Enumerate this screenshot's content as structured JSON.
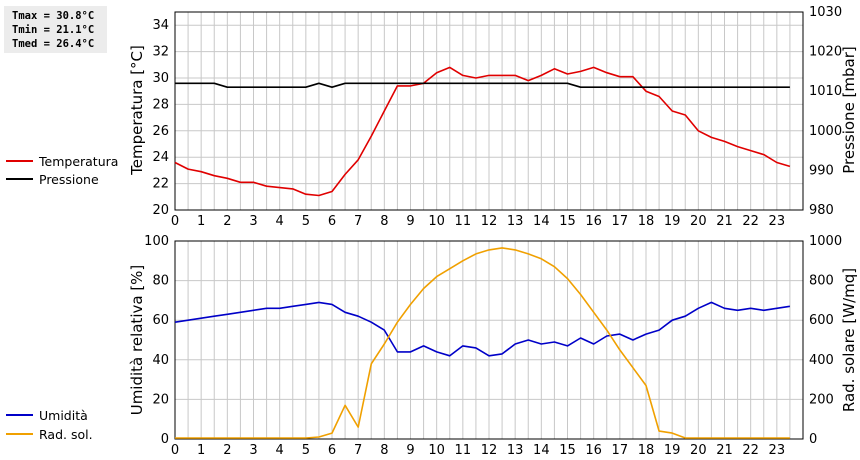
{
  "stats": {
    "tmax": "Tmax = 30.8°C",
    "tmin": "Tmin = 21.1°C",
    "tmed": "Tmed = 26.4°C"
  },
  "colors": {
    "temperature": "#e00000",
    "pressure": "#000000",
    "humidity": "#0000c8",
    "radiation": "#f0a000",
    "grid": "#c8c8c8"
  },
  "chart_data": [
    {
      "type": "line",
      "title": "",
      "xlabel": "",
      "ylabel": "Temperatura [°C]",
      "ylabel_right": "Pressione [mbar]",
      "xlim": [
        0,
        24
      ],
      "xticks": [
        "0",
        "1",
        "2",
        "3",
        "4",
        "5",
        "6",
        "7",
        "8",
        "9",
        "10",
        "11",
        "12",
        "13",
        "14",
        "15",
        "16",
        "17",
        "18",
        "19",
        "20",
        "21",
        "22",
        "23"
      ],
      "ylim": [
        20,
        35
      ],
      "yticks": [
        "20",
        "22",
        "24",
        "26",
        "28",
        "30",
        "32",
        "34"
      ],
      "ylim_right": [
        980,
        1030
      ],
      "yticks_right": [
        "980",
        "990",
        "1000",
        "1010",
        "1020",
        "1030"
      ],
      "grid": true,
      "legend": "left",
      "series": [
        {
          "name": "Temperatura",
          "axis": "left",
          "x": [
            0,
            0.5,
            1,
            1.5,
            2,
            2.5,
            3,
            3.5,
            4,
            4.5,
            5,
            5.5,
            6,
            6.5,
            7,
            7.5,
            8,
            8.5,
            9,
            9.5,
            10,
            10.5,
            11,
            11.5,
            12,
            12.5,
            13,
            13.5,
            14,
            14.5,
            15,
            15.5,
            16,
            16.5,
            17,
            17.5,
            18,
            18.5,
            19,
            19.5,
            20,
            20.5,
            21,
            21.5,
            22,
            22.5,
            23,
            23.5
          ],
          "values": [
            23.6,
            23.1,
            22.9,
            22.6,
            22.4,
            22.1,
            22.1,
            21.8,
            21.7,
            21.6,
            21.2,
            21.1,
            21.4,
            22.7,
            23.8,
            25.6,
            27.5,
            29.4,
            29.4,
            29.6,
            30.4,
            30.8,
            30.2,
            30.0,
            30.2,
            30.2,
            30.2,
            29.8,
            30.2,
            30.7,
            30.3,
            30.5,
            30.8,
            30.4,
            30.1,
            30.1,
            29.0,
            28.6,
            27.5,
            27.2,
            26.0,
            25.5,
            25.2,
            24.8,
            24.5,
            24.2,
            23.6,
            23.3
          ]
        },
        {
          "name": "Pressione",
          "axis": "right",
          "x": [
            0,
            0.5,
            1,
            1.5,
            2,
            2.5,
            3,
            3.5,
            4,
            4.5,
            5,
            5.5,
            6,
            6.5,
            7,
            7.5,
            8,
            8.5,
            9,
            9.5,
            10,
            10.5,
            11,
            11.5,
            12,
            12.5,
            13,
            13.5,
            14,
            14.5,
            15,
            15.5,
            16,
            16.5,
            17,
            17.5,
            18,
            18.5,
            19,
            19.5,
            20,
            20.5,
            21,
            21.5,
            22,
            22.5,
            23,
            23.5
          ],
          "values": [
            1012,
            1012,
            1012,
            1012,
            1011,
            1011,
            1011,
            1011,
            1011,
            1011,
            1011,
            1012,
            1011,
            1012,
            1012,
            1012,
            1012,
            1012,
            1012,
            1012,
            1012,
            1012,
            1012,
            1012,
            1012,
            1012,
            1012,
            1012,
            1012,
            1012,
            1012,
            1011,
            1011,
            1011,
            1011,
            1011,
            1011,
            1011,
            1011,
            1011,
            1011,
            1011,
            1011,
            1011,
            1011,
            1011,
            1011,
            1011
          ]
        }
      ]
    },
    {
      "type": "line",
      "title": "",
      "xlabel": "",
      "ylabel": "Umidità relativa [%]",
      "ylabel_right": "Rad. solare [W/mq]",
      "xlim": [
        0,
        24
      ],
      "xticks": [
        "0",
        "1",
        "2",
        "3",
        "4",
        "5",
        "6",
        "7",
        "8",
        "9",
        "10",
        "11",
        "12",
        "13",
        "14",
        "15",
        "16",
        "17",
        "18",
        "19",
        "20",
        "21",
        "22",
        "23"
      ],
      "ylim": [
        0,
        100
      ],
      "yticks": [
        "0",
        "20",
        "40",
        "60",
        "80",
        "100"
      ],
      "ylim_right": [
        0,
        1000
      ],
      "yticks_right": [
        "0",
        "200",
        "400",
        "600",
        "800",
        "1000"
      ],
      "grid": true,
      "legend": "left",
      "series": [
        {
          "name": "Umidità",
          "axis": "left",
          "x": [
            0,
            0.5,
            1,
            1.5,
            2,
            2.5,
            3,
            3.5,
            4,
            4.5,
            5,
            5.5,
            6,
            6.5,
            7,
            7.5,
            8,
            8.5,
            9,
            9.5,
            10,
            10.5,
            11,
            11.5,
            12,
            12.5,
            13,
            13.5,
            14,
            14.5,
            15,
            15.5,
            16,
            16.5,
            17,
            17.5,
            18,
            18.5,
            19,
            19.5,
            20,
            20.5,
            21,
            21.5,
            22,
            22.5,
            23,
            23.5
          ],
          "values": [
            59,
            60,
            61,
            62,
            63,
            64,
            65,
            66,
            66,
            67,
            68,
            69,
            68,
            64,
            62,
            59,
            55,
            44,
            44,
            47,
            44,
            42,
            47,
            46,
            42,
            43,
            48,
            50,
            48,
            49,
            47,
            51,
            48,
            52,
            53,
            50,
            53,
            55,
            60,
            62,
            66,
            69,
            66,
            65,
            66,
            65,
            66,
            67
          ]
        },
        {
          "name": "Rad. sol.",
          "axis": "right",
          "x": [
            0,
            0.5,
            1,
            1.5,
            2,
            2.5,
            3,
            3.5,
            4,
            4.5,
            5,
            5.5,
            6,
            6.5,
            7,
            7.5,
            8,
            8.5,
            9,
            9.5,
            10,
            10.5,
            11,
            11.5,
            12,
            12.5,
            13,
            13.5,
            14,
            14.5,
            15,
            15.5,
            16,
            16.5,
            17,
            17.5,
            18,
            18.5,
            19,
            19.5,
            20,
            20.5,
            21,
            21.5,
            22,
            22.5,
            23,
            23.5
          ],
          "values": [
            5,
            5,
            5,
            5,
            5,
            5,
            5,
            5,
            5,
            5,
            5,
            10,
            30,
            170,
            60,
            380,
            480,
            590,
            680,
            760,
            820,
            860,
            900,
            935,
            955,
            965,
            955,
            935,
            910,
            870,
            810,
            730,
            640,
            550,
            450,
            360,
            270,
            40,
            30,
            5,
            5,
            5,
            5,
            5,
            5,
            5,
            5,
            5
          ]
        }
      ]
    }
  ]
}
